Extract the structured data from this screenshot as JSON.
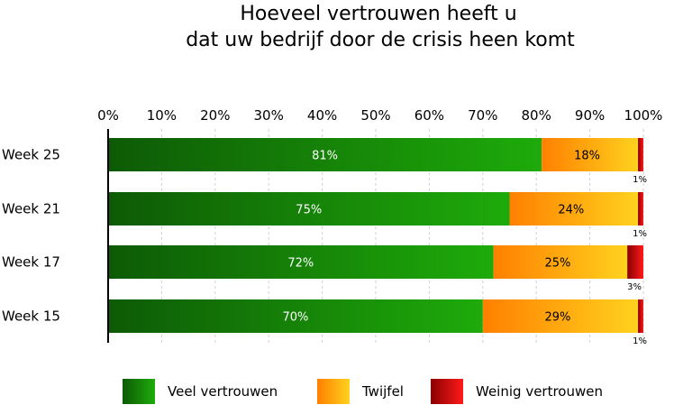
{
  "chart_data": {
    "type": "bar",
    "orientation": "horizontal",
    "stacked": true,
    "title_lines": [
      "Hoeveel vertrouwen heeft u",
      "dat uw bedrijf door de crisis heen komt"
    ],
    "categories": [
      "Week 25",
      "Week 21",
      "Week 17",
      "Week 15"
    ],
    "series": [
      {
        "name": "Veel vertrouwen",
        "values": [
          81,
          75,
          72,
          70
        ],
        "labels": [
          "81%",
          "75%",
          "72%",
          "70%"
        ]
      },
      {
        "name": "Twijfel",
        "values": [
          18,
          24,
          25,
          29
        ],
        "labels": [
          "18%",
          "24%",
          "25%",
          "29%"
        ]
      },
      {
        "name": "Weinig vertrouwen",
        "values": [
          1,
          1,
          3,
          1
        ],
        "labels": [
          "1%",
          "1%",
          "3%",
          "1%"
        ]
      }
    ],
    "x_ticks": [
      "0%",
      "10%",
      "20%",
      "30%",
      "40%",
      "50%",
      "60%",
      "70%",
      "80%",
      "90%",
      "100%"
    ],
    "xlim": [
      0,
      100
    ],
    "axis_position": "top",
    "grid": true,
    "legend_position": "bottom",
    "colors": {
      "veel_dark": "#0d5a05",
      "veel_light": "#1eab0a",
      "twijfel_dark": "#ff8000",
      "twijfel_light": "#ffd21e",
      "weinig_dark": "#8a0000",
      "weinig_light": "#ff1a1a"
    }
  }
}
